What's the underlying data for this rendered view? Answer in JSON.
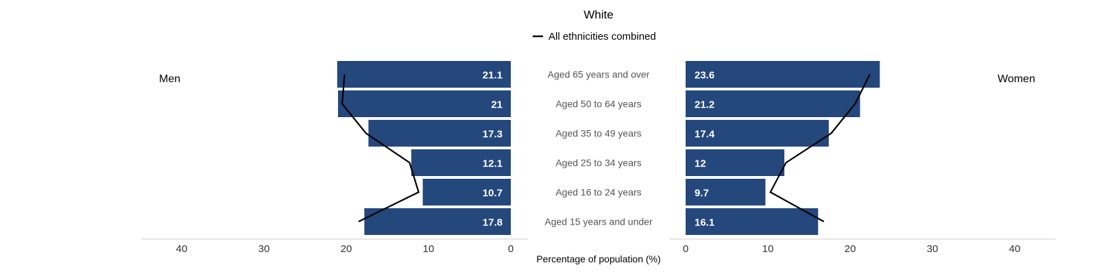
{
  "chart_data": {
    "type": "bar",
    "title": "White",
    "legend": {
      "line_label": "All ethnicities combined",
      "placement": "top-center"
    },
    "left_label": "Men",
    "right_label": "Women",
    "xlabel": "Percentage of population (%)",
    "xlim": [
      0,
      40
    ],
    "ticks": [
      "0",
      "10",
      "20",
      "30",
      "40"
    ],
    "ticks_left": [
      "40",
      "30",
      "20",
      "10",
      "0"
    ],
    "categories": [
      "Aged 65 years and over",
      "Aged 50 to 64 years",
      "Aged 35 to 49 years",
      "Aged 25 to 34 years",
      "Aged 16 to 24 years",
      "Aged 15 years and under"
    ],
    "series": [
      {
        "name": "Men",
        "values": [
          21.1,
          21,
          17.3,
          12.1,
          10.7,
          17.8
        ],
        "labels": [
          "21.1",
          "21",
          "17.3",
          "12.1",
          "10.7",
          "17.8"
        ]
      },
      {
        "name": "Women",
        "values": [
          23.6,
          21.2,
          17.4,
          12,
          9.7,
          16.1
        ],
        "labels": [
          "23.6",
          "21.2",
          "17.4",
          "12",
          "9.7",
          "16.1"
        ]
      }
    ],
    "overlay_line": {
      "name": "All ethnicities combined",
      "men": [
        20.2,
        20.5,
        17.6,
        12.3,
        11.2,
        18.5
      ],
      "women": [
        22.4,
        20.6,
        17.7,
        12.2,
        10.3,
        16.8
      ]
    },
    "colors": {
      "bar": "#24477c",
      "line": "#000000",
      "label": "#ffffff"
    }
  }
}
